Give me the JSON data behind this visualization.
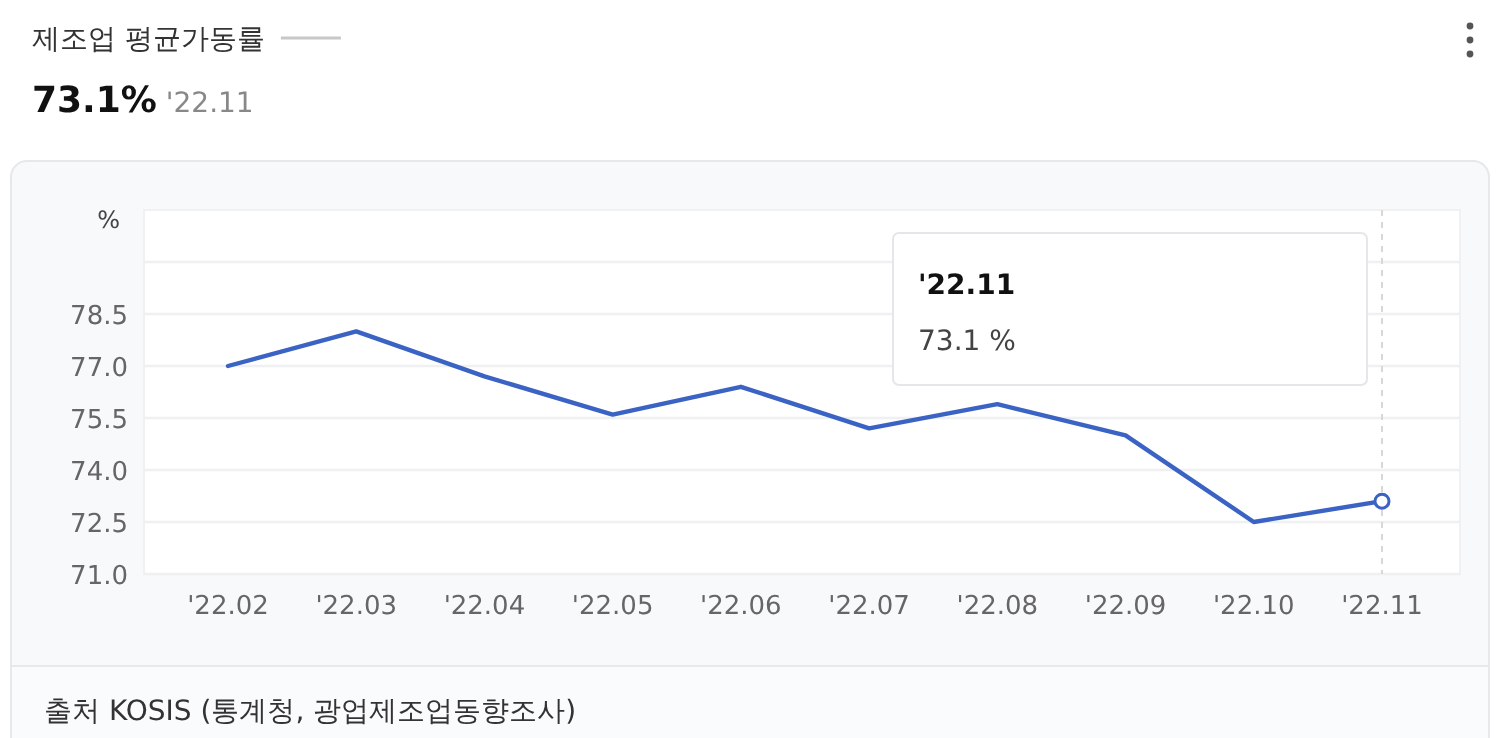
{
  "chart_data": {
    "type": "line",
    "title": "제조업 평균가동률",
    "subtitle": "**73.1%** '22.11",
    "ylabel": "%",
    "categories": [
      "'22.02",
      "'22.03",
      "'22.04",
      "'22.05",
      "'22.06",
      "'22.07",
      "'22.08",
      "'22.09",
      "'22.10",
      "'22.11"
    ],
    "series": [
      {
        "color": "#3a63c4",
        "values": [
          77.0,
          78.0,
          76.7,
          75.6,
          76.4,
          75.2,
          75.9,
          75.0,
          72.5,
          73.1
        ]
      }
    ],
    "ylim": [
      71,
      81.5
    ],
    "yticks": [
      {
        "value": 71,
        "label": "71.0"
      },
      72.5,
      {
        "value": 74,
        "label": "74.0"
      },
      75.5,
      {
        "value": 77,
        "label": "77.0"
      },
      78.5,
      {
        "value": 80,
        "label": null
      }
    ],
    "ref_lines": [
      {
        "axis": "x",
        "value": "'22.11",
        "color": "#d8d8d8",
        "line_style": "dashed"
      }
    ],
    "grid": "y",
    "marker": "none",
    "line_style": "solid",
    "annotations": [
      "'22.11",
      "73.1 %",
      "출처 KOSIS (통계청, 광업제조업동향조사)"
    ]
  }
}
